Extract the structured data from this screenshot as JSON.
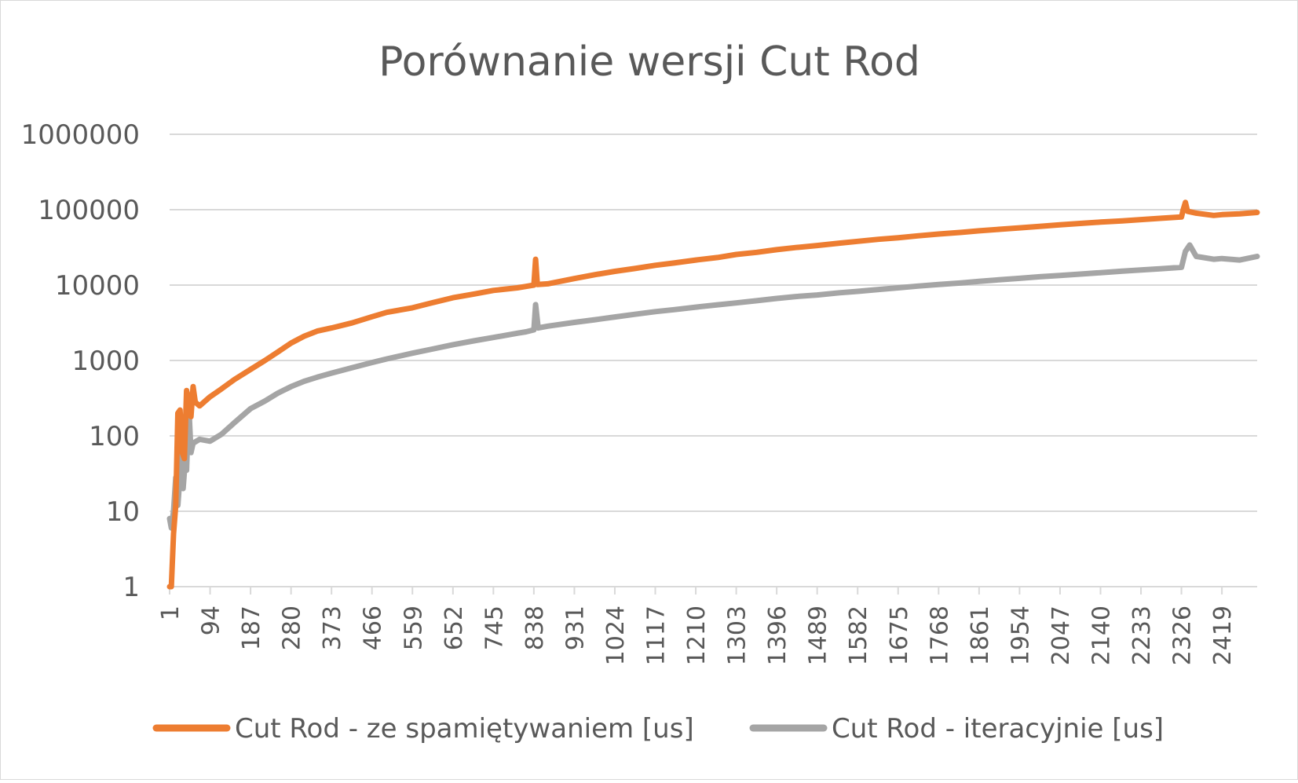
{
  "chart_data": {
    "type": "line",
    "title": "Porównanie wersji Cut Rod",
    "xlabel": "",
    "ylabel": "",
    "y_scale": "log",
    "ylim": [
      1,
      1000000
    ],
    "y_ticks": [
      "1",
      "10",
      "100",
      "1000",
      "10000",
      "100000",
      "1000000"
    ],
    "x_range": [
      1,
      2500
    ],
    "x_ticks": [
      "1",
      "94",
      "187",
      "280",
      "373",
      "466",
      "559",
      "652",
      "745",
      "838",
      "931",
      "1024",
      "1117",
      "1210",
      "1303",
      "1396",
      "1489",
      "1582",
      "1675",
      "1768",
      "1861",
      "1954",
      "2047",
      "2140",
      "2233",
      "2326",
      "2419"
    ],
    "grid": true,
    "legend_position": "bottom",
    "series": [
      {
        "name": "Cut Rod - ze spamiętywaniem [us]",
        "color": "#ED7D31",
        "points": [
          [
            1,
            1
          ],
          [
            5,
            1
          ],
          [
            10,
            5
          ],
          [
            15,
            12
          ],
          [
            20,
            200
          ],
          [
            25,
            220
          ],
          [
            30,
            60
          ],
          [
            35,
            50
          ],
          [
            40,
            400
          ],
          [
            45,
            300
          ],
          [
            50,
            180
          ],
          [
            55,
            450
          ],
          [
            60,
            280
          ],
          [
            70,
            250
          ],
          [
            94,
            330
          ],
          [
            120,
            420
          ],
          [
            150,
            560
          ],
          [
            187,
            760
          ],
          [
            220,
            1000
          ],
          [
            250,
            1300
          ],
          [
            280,
            1700
          ],
          [
            310,
            2100
          ],
          [
            340,
            2450
          ],
          [
            373,
            2700
          ],
          [
            420,
            3150
          ],
          [
            466,
            3800
          ],
          [
            500,
            4350
          ],
          [
            559,
            5000
          ],
          [
            600,
            5750
          ],
          [
            652,
            6800
          ],
          [
            700,
            7600
          ],
          [
            745,
            8500
          ],
          [
            800,
            9200
          ],
          [
            820,
            9600
          ],
          [
            838,
            10000
          ],
          [
            842,
            22000
          ],
          [
            846,
            10200
          ],
          [
            870,
            10400
          ],
          [
            931,
            12200
          ],
          [
            980,
            13800
          ],
          [
            1024,
            15200
          ],
          [
            1070,
            16600
          ],
          [
            1117,
            18300
          ],
          [
            1160,
            19600
          ],
          [
            1210,
            21500
          ],
          [
            1260,
            23200
          ],
          [
            1303,
            25500
          ],
          [
            1350,
            27200
          ],
          [
            1396,
            29500
          ],
          [
            1440,
            31500
          ],
          [
            1489,
            33500
          ],
          [
            1540,
            36000
          ],
          [
            1582,
            38000
          ],
          [
            1630,
            40500
          ],
          [
            1675,
            42500
          ],
          [
            1720,
            45000
          ],
          [
            1768,
            47500
          ],
          [
            1820,
            50000
          ],
          [
            1861,
            52500
          ],
          [
            1910,
            55000
          ],
          [
            1954,
            57500
          ],
          [
            2000,
            60000
          ],
          [
            2047,
            63000
          ],
          [
            2100,
            66000
          ],
          [
            2140,
            68500
          ],
          [
            2190,
            71000
          ],
          [
            2233,
            74000
          ],
          [
            2280,
            77000
          ],
          [
            2326,
            80000
          ],
          [
            2330,
            100000
          ],
          [
            2335,
            125000
          ],
          [
            2340,
            95000
          ],
          [
            2360,
            90000
          ],
          [
            2400,
            84000
          ],
          [
            2419,
            86000
          ],
          [
            2460,
            88000
          ],
          [
            2500,
            92000
          ]
        ]
      },
      {
        "name": "Cut Rod - iteracyjnie [us]",
        "color": "#A5A5A5",
        "points": [
          [
            1,
            8
          ],
          [
            5,
            6
          ],
          [
            10,
            10
          ],
          [
            15,
            28
          ],
          [
            20,
            12
          ],
          [
            25,
            30
          ],
          [
            28,
            150
          ],
          [
            32,
            20
          ],
          [
            36,
            40
          ],
          [
            40,
            35
          ],
          [
            45,
            260
          ],
          [
            50,
            60
          ],
          [
            55,
            80
          ],
          [
            70,
            90
          ],
          [
            94,
            85
          ],
          [
            120,
            105
          ],
          [
            150,
            150
          ],
          [
            187,
            230
          ],
          [
            220,
            290
          ],
          [
            250,
            370
          ],
          [
            280,
            450
          ],
          [
            310,
            530
          ],
          [
            340,
            600
          ],
          [
            373,
            680
          ],
          [
            420,
            800
          ],
          [
            466,
            940
          ],
          [
            500,
            1050
          ],
          [
            559,
            1250
          ],
          [
            600,
            1400
          ],
          [
            652,
            1620
          ],
          [
            700,
            1820
          ],
          [
            745,
            2020
          ],
          [
            800,
            2300
          ],
          [
            820,
            2400
          ],
          [
            838,
            2550
          ],
          [
            842,
            5500
          ],
          [
            848,
            2700
          ],
          [
            870,
            2850
          ],
          [
            931,
            3200
          ],
          [
            980,
            3480
          ],
          [
            1024,
            3780
          ],
          [
            1070,
            4100
          ],
          [
            1117,
            4450
          ],
          [
            1160,
            4720
          ],
          [
            1210,
            5100
          ],
          [
            1260,
            5480
          ],
          [
            1303,
            5800
          ],
          [
            1350,
            6200
          ],
          [
            1396,
            6650
          ],
          [
            1440,
            7050
          ],
          [
            1489,
            7400
          ],
          [
            1540,
            7900
          ],
          [
            1582,
            8250
          ],
          [
            1630,
            8750
          ],
          [
            1675,
            9200
          ],
          [
            1720,
            9700
          ],
          [
            1768,
            10200
          ],
          [
            1820,
            10700
          ],
          [
            1861,
            11200
          ],
          [
            1910,
            11800
          ],
          [
            1954,
            12300
          ],
          [
            2000,
            12900
          ],
          [
            2047,
            13400
          ],
          [
            2100,
            14100
          ],
          [
            2140,
            14600
          ],
          [
            2190,
            15300
          ],
          [
            2233,
            15900
          ],
          [
            2280,
            16500
          ],
          [
            2326,
            17200
          ],
          [
            2335,
            28000
          ],
          [
            2345,
            34000
          ],
          [
            2360,
            24000
          ],
          [
            2400,
            22000
          ],
          [
            2419,
            22500
          ],
          [
            2460,
            21500
          ],
          [
            2500,
            24000
          ]
        ]
      }
    ]
  }
}
